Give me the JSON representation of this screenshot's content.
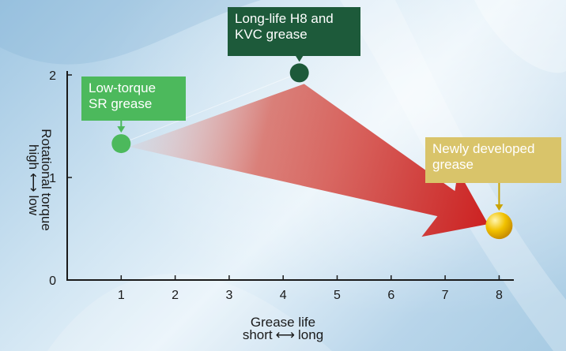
{
  "chart_data": {
    "type": "scatter",
    "title": "",
    "x_axis": {
      "label_line1": "Grease life",
      "label_left": "short",
      "label_right": "long",
      "ticks": [
        "1",
        "2",
        "3",
        "4",
        "5",
        "6",
        "7",
        "8"
      ],
      "range": [
        0,
        8.5
      ]
    },
    "y_axis": {
      "label_line1": "Rotational torque",
      "label_left": "high",
      "label_right": "low",
      "ticks": [
        "0",
        "1",
        "2"
      ],
      "range": [
        0,
        2.25
      ]
    },
    "points": [
      {
        "name": "Low-torque SR grease",
        "x": 1.0,
        "y": 1.33,
        "color": "#4cb95c"
      },
      {
        "name": "Long-life H8 and KVC grease",
        "x": 4.3,
        "y": 2.02,
        "color": "#1d5a3a"
      },
      {
        "name": "Newly developed grease",
        "x": 8.0,
        "y": 0.53,
        "color": "#f2c200"
      }
    ],
    "annotations": [
      {
        "lines": [
          "Low-torque",
          "SR grease"
        ],
        "box_color": "#4cb95c",
        "points_to": "Low-torque SR grease"
      },
      {
        "lines": [
          "Long-life H8 and",
          "KVC grease"
        ],
        "box_color": "#1d5a3a",
        "points_to": "Long-life H8 and KVC grease"
      },
      {
        "lines": [
          "Newly developed",
          "grease"
        ],
        "box_color": "#d9c46a",
        "points_to": "Newly developed grease"
      }
    ],
    "arrow_color": "#cc1f1f"
  }
}
